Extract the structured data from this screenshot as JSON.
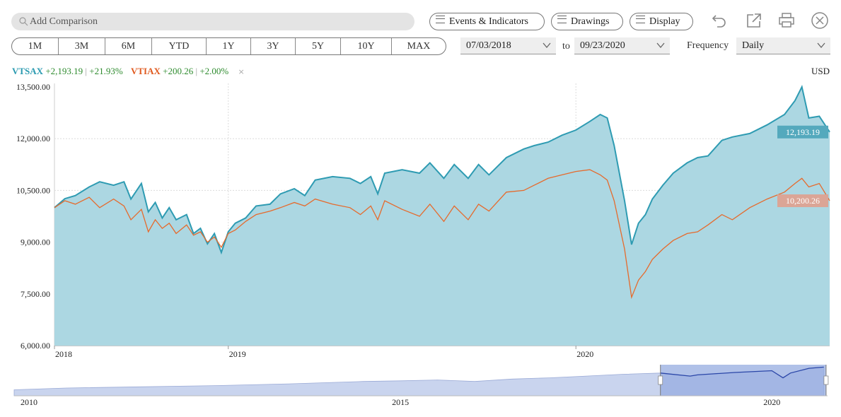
{
  "search": {
    "placeholder": "Add Comparison"
  },
  "toolbar": {
    "events_label": "Events & Indicators",
    "drawings_label": "Drawings",
    "display_label": "Display"
  },
  "ranges": [
    "1M",
    "3M",
    "6M",
    "YTD",
    "1Y",
    "3Y",
    "5Y",
    "10Y",
    "MAX"
  ],
  "dates": {
    "start": "07/03/2018",
    "to_label": "to",
    "end": "09/23/2020"
  },
  "frequency": {
    "label": "Frequency",
    "value": "Daily"
  },
  "legend": {
    "s1": {
      "ticker": "VTSAX",
      "change": "+2,193.19",
      "pct": "+21.93%"
    },
    "s2": {
      "ticker": "VTIAX",
      "change": "+200.26",
      "pct": "+2.00%"
    },
    "sep": "|",
    "close": "×"
  },
  "currency": "USD",
  "colors": {
    "vtsax_line": "#2e9bb2",
    "vtsax_fill": "#acd7e2",
    "vtiax_line": "#e66a2c",
    "vtsax_badge": "#54a9bd",
    "vtiax_badge": "#dba596",
    "nav_fill": "#c9d4ee",
    "nav_sel": "#96ace0"
  },
  "chart_data": {
    "type": "line",
    "title": "",
    "xlabel": "",
    "ylabel": "",
    "ylim": [
      6000,
      13500
    ],
    "yticks": [
      "13,500.00",
      "12,000.00",
      "10,500.00",
      "9,000.00",
      "7,500.00",
      "6,000.00"
    ],
    "ytick_values": [
      13500,
      12000,
      10500,
      9000,
      7500,
      6000
    ],
    "xticks": [
      "2018",
      "2019",
      "2020"
    ],
    "x_start": 2018.5,
    "x_end": 2020.73,
    "x_tick_values": [
      2018.5,
      2019.0,
      2020.0
    ],
    "series": [
      {
        "name": "VTSAX",
        "last_label": "12,193.19",
        "x": [
          2018.5,
          2018.53,
          2018.56,
          2018.6,
          2018.63,
          2018.67,
          2018.7,
          2018.72,
          2018.75,
          2018.77,
          2018.79,
          2018.81,
          2018.83,
          2018.85,
          2018.88,
          2018.9,
          2018.92,
          2018.94,
          2018.96,
          2018.98,
          2019.0,
          2019.02,
          2019.05,
          2019.08,
          2019.12,
          2019.15,
          2019.19,
          2019.22,
          2019.25,
          2019.3,
          2019.35,
          2019.38,
          2019.41,
          2019.43,
          2019.45,
          2019.5,
          2019.55,
          2019.58,
          2019.62,
          2019.65,
          2019.69,
          2019.72,
          2019.75,
          2019.8,
          2019.85,
          2019.88,
          2019.92,
          2019.96,
          2020.0,
          2020.04,
          2020.07,
          2020.09,
          2020.11,
          2020.14,
          2020.16,
          2020.18,
          2020.2,
          2020.22,
          2020.25,
          2020.28,
          2020.32,
          2020.35,
          2020.38,
          2020.42,
          2020.45,
          2020.5,
          2020.55,
          2020.6,
          2020.63,
          2020.65,
          2020.67,
          2020.7,
          2020.73
        ],
        "y": [
          10000,
          10260,
          10350,
          10600,
          10750,
          10650,
          10750,
          10250,
          10700,
          9880,
          10150,
          9700,
          10000,
          9650,
          9800,
          9250,
          9400,
          8950,
          9250,
          8700,
          9300,
          9550,
          9700,
          10050,
          10100,
          10400,
          10550,
          10350,
          10800,
          10900,
          10850,
          10700,
          10900,
          10400,
          11000,
          11100,
          11000,
          11300,
          10850,
          11250,
          10850,
          11250,
          10950,
          11450,
          11700,
          11800,
          11900,
          12100,
          12250,
          12500,
          12700,
          12600,
          11800,
          10200,
          8930,
          9550,
          9800,
          10250,
          10650,
          11000,
          11300,
          11450,
          11500,
          11950,
          12050,
          12150,
          12400,
          12700,
          13100,
          13500,
          12600,
          12650,
          12193
        ]
      },
      {
        "name": "VTIAX",
        "last_label": "10,200.26",
        "x": [
          2018.5,
          2018.53,
          2018.56,
          2018.6,
          2018.63,
          2018.67,
          2018.7,
          2018.72,
          2018.75,
          2018.77,
          2018.79,
          2018.81,
          2018.83,
          2018.85,
          2018.88,
          2018.9,
          2018.92,
          2018.94,
          2018.96,
          2018.98,
          2019.0,
          2019.02,
          2019.05,
          2019.08,
          2019.12,
          2019.15,
          2019.19,
          2019.22,
          2019.25,
          2019.3,
          2019.35,
          2019.38,
          2019.41,
          2019.43,
          2019.45,
          2019.5,
          2019.55,
          2019.58,
          2019.62,
          2019.65,
          2019.69,
          2019.72,
          2019.75,
          2019.8,
          2019.85,
          2019.88,
          2019.92,
          2019.96,
          2020.0,
          2020.04,
          2020.07,
          2020.09,
          2020.11,
          2020.14,
          2020.16,
          2020.18,
          2020.2,
          2020.22,
          2020.25,
          2020.28,
          2020.32,
          2020.35,
          2020.38,
          2020.42,
          2020.45,
          2020.5,
          2020.55,
          2020.6,
          2020.63,
          2020.65,
          2020.67,
          2020.7,
          2020.73
        ],
        "y": [
          10000,
          10200,
          10100,
          10300,
          10000,
          10250,
          10050,
          9650,
          9950,
          9300,
          9650,
          9400,
          9550,
          9250,
          9500,
          9200,
          9300,
          9000,
          9150,
          8850,
          9250,
          9350,
          9600,
          9800,
          9900,
          10000,
          10150,
          10050,
          10250,
          10100,
          10000,
          9800,
          10050,
          9650,
          10200,
          9950,
          9750,
          10100,
          9600,
          10050,
          9650,
          10100,
          9900,
          10450,
          10500,
          10650,
          10850,
          10950,
          11050,
          11100,
          10950,
          10800,
          10200,
          8800,
          7400,
          7900,
          8150,
          8500,
          8800,
          9050,
          9250,
          9300,
          9500,
          9800,
          9650,
          10000,
          10250,
          10450,
          10700,
          10850,
          10600,
          10700,
          10200
        ]
      }
    ],
    "navigator": {
      "xticks": [
        "2010",
        "2015",
        "2020"
      ],
      "x_range": [
        2009.8,
        2020.75
      ],
      "tick_values": [
        2010,
        2015,
        2020
      ],
      "selected_range": [
        2018.5,
        2020.73
      ],
      "x": [
        2009.8,
        2010.5,
        2011.5,
        2012.5,
        2013.5,
        2014.5,
        2015.0,
        2015.5,
        2016.0,
        2016.5,
        2017.0,
        2017.5,
        2018.0,
        2018.5,
        2018.9,
        2019.0,
        2019.5,
        2020.0,
        2020.15,
        2020.25,
        2020.5,
        2020.7
      ],
      "y": [
        100,
        130,
        150,
        170,
        200,
        240,
        250,
        265,
        240,
        280,
        300,
        330,
        360,
        380,
        330,
        350,
        390,
        420,
        300,
        380,
        460,
        480
      ]
    }
  }
}
